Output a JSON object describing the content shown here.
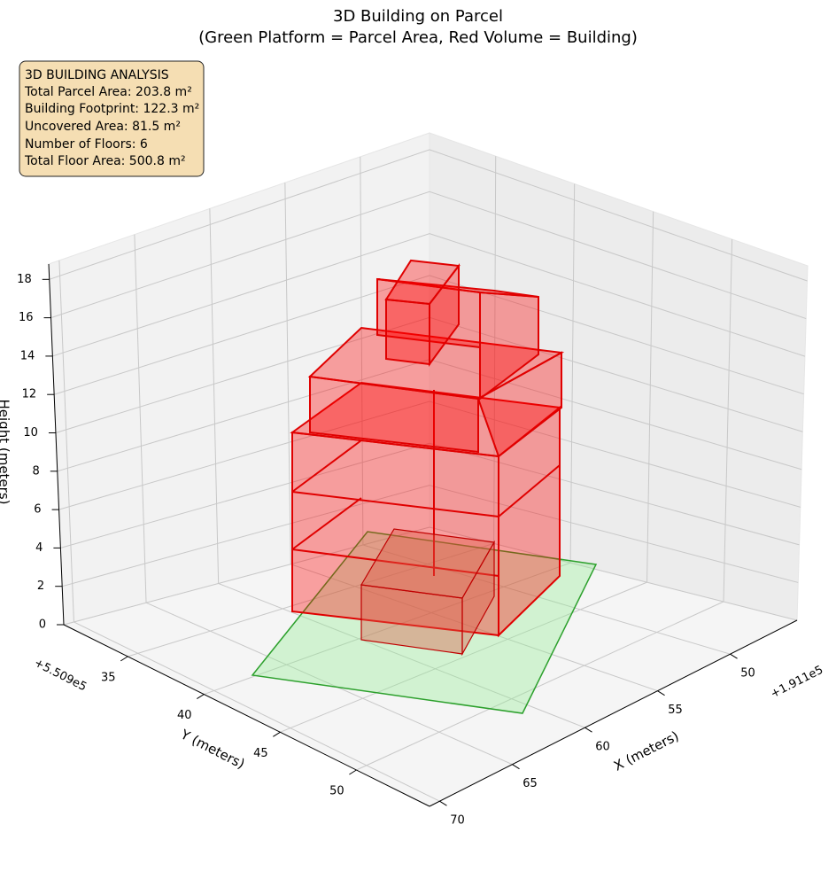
{
  "chart_data": {
    "type": "bar3d",
    "title": [
      "3D Building on Parcel",
      "(Green Platform = Parcel Area, Red Volume = Building)"
    ],
    "annotation": [
      "3D BUILDING ANALYSIS",
      "Total Parcel Area: 203.8 m²",
      "Building Footprint: 122.3 m²",
      "Uncovered Area: 81.5 m²",
      "Number of Floors: 6",
      "Total Floor Area: 500.8 m²"
    ],
    "xlabel": "X (meters)",
    "ylabel": "Y (meters)",
    "zlabel": "Height (meters)",
    "x_offset": "+1.911e5",
    "y_offset": "+5.509e5",
    "xlim": [
      45.4,
      70.7
    ],
    "ylim": [
      30.8,
      54.8
    ],
    "zlim": [
      0,
      18.8
    ],
    "xticks": [
      50,
      55,
      60,
      65,
      70
    ],
    "yticks": [
      35,
      40,
      45,
      50
    ],
    "zticks": [
      0,
      2,
      4,
      6,
      8,
      10,
      12,
      14,
      16,
      18
    ],
    "parcel_color": "#90ee90",
    "building_color": "#ff0000",
    "grid": true
  }
}
